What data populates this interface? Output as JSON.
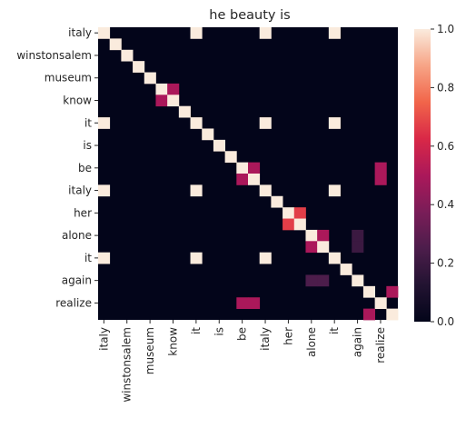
{
  "chart_data": {
    "type": "heatmap",
    "title": "he beauty is",
    "x_labels": [
      "italy",
      "winstonsalem",
      "museum",
      "know",
      "it",
      "is",
      "be",
      "italy",
      "her",
      "alone",
      "it",
      "again",
      "realize"
    ],
    "y_labels": [
      "italy",
      "winstonsalem",
      "museum",
      "know",
      "it",
      "is",
      "be",
      "italy",
      "her",
      "alone",
      "it",
      "again",
      "realize"
    ],
    "n_rows": 26,
    "n_cols": 26,
    "tick_every": 2,
    "vmin": 0.0,
    "vmax": 1.0,
    "colorbar_ticks": [
      "0.0",
      "0.2",
      "0.4",
      "0.6",
      "0.8",
      "1.0"
    ],
    "colormap": "rocket",
    "cells": [
      [
        0,
        0,
        1.0
      ],
      [
        0,
        8,
        1.0
      ],
      [
        0,
        14,
        1.0
      ],
      [
        0,
        20,
        1.0
      ],
      [
        1,
        1,
        1.0
      ],
      [
        2,
        2,
        1.0
      ],
      [
        3,
        3,
        1.0
      ],
      [
        4,
        4,
        1.0
      ],
      [
        5,
        5,
        1.0
      ],
      [
        5,
        6,
        0.5
      ],
      [
        6,
        5,
        0.5
      ],
      [
        6,
        6,
        1.0
      ],
      [
        7,
        7,
        1.0
      ],
      [
        8,
        0,
        1.0
      ],
      [
        8,
        8,
        1.0
      ],
      [
        8,
        14,
        1.0
      ],
      [
        8,
        20,
        1.0
      ],
      [
        9,
        9,
        1.0
      ],
      [
        10,
        10,
        1.0
      ],
      [
        11,
        11,
        1.0
      ],
      [
        12,
        12,
        1.0
      ],
      [
        12,
        13,
        0.5
      ],
      [
        12,
        24,
        0.5
      ],
      [
        13,
        12,
        0.5
      ],
      [
        13,
        13,
        1.0
      ],
      [
        13,
        24,
        0.5
      ],
      [
        14,
        0,
        1.0
      ],
      [
        14,
        8,
        1.0
      ],
      [
        14,
        14,
        1.0
      ],
      [
        14,
        20,
        1.0
      ],
      [
        15,
        15,
        1.0
      ],
      [
        16,
        16,
        1.0
      ],
      [
        16,
        17,
        0.67
      ],
      [
        17,
        16,
        0.67
      ],
      [
        17,
        17,
        1.0
      ],
      [
        18,
        18,
        1.0
      ],
      [
        18,
        19,
        0.5
      ],
      [
        18,
        22,
        0.2
      ],
      [
        19,
        18,
        0.5
      ],
      [
        19,
        19,
        1.0
      ],
      [
        19,
        22,
        0.2
      ],
      [
        20,
        0,
        1.0
      ],
      [
        20,
        8,
        1.0
      ],
      [
        20,
        14,
        1.0
      ],
      [
        20,
        20,
        1.0
      ],
      [
        21,
        21,
        1.0
      ],
      [
        22,
        18,
        0.25
      ],
      [
        22,
        19,
        0.25
      ],
      [
        22,
        22,
        1.0
      ],
      [
        23,
        23,
        1.0
      ],
      [
        23,
        25,
        0.5
      ],
      [
        24,
        12,
        0.5
      ],
      [
        24,
        13,
        0.5
      ],
      [
        24,
        24,
        1.0
      ],
      [
        25,
        23,
        0.5
      ],
      [
        25,
        25,
        1.0
      ]
    ]
  }
}
